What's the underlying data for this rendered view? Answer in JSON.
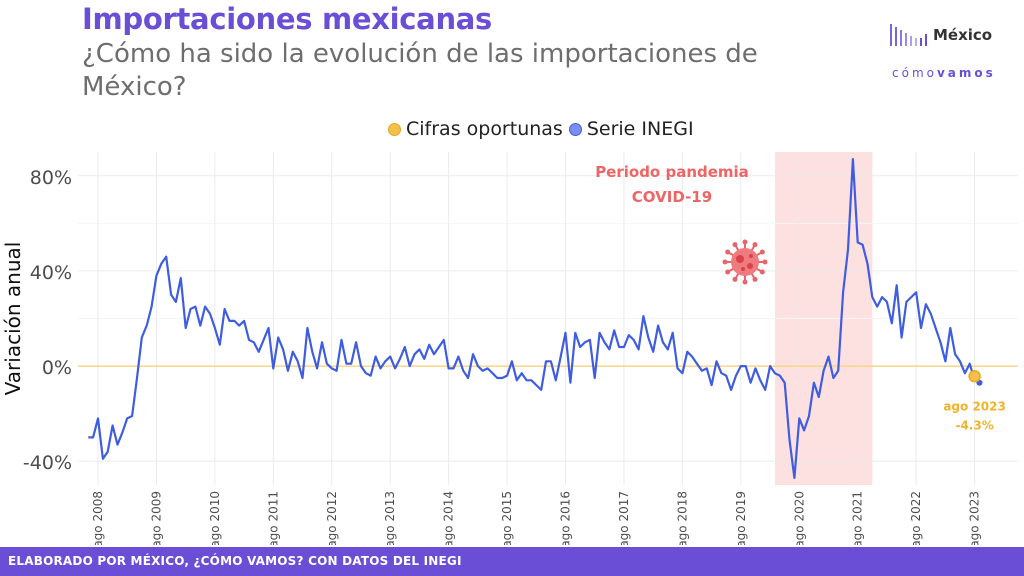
{
  "header": {
    "title": "Importaciones mexicanas",
    "subtitle": "¿Cómo ha sido la evolución de las importaciones de México?"
  },
  "logo": {
    "name": "México",
    "sub_a": "cómo",
    "sub_b": "vamos"
  },
  "footer": {
    "text": "ELABORADO POR MÉXICO, ¿CÓMO VAMOS? CON DATOS DEL INEGI"
  },
  "colors": {
    "accent": "#6a4fd6",
    "series": "#3f5de0",
    "oportunas": "#f3c14b",
    "pandemic_band": "#fde0e0",
    "pandemic_text": "#ef6464"
  },
  "chart_data": {
    "type": "line",
    "xlabel": "",
    "ylabel": "Variación anual",
    "ylim": [
      -50,
      90
    ],
    "yticks": [
      -40,
      0,
      40,
      80
    ],
    "ytick_labels": [
      "-40%",
      "0%",
      "40%",
      "80%"
    ],
    "xticks": [
      "ago 2008",
      "ago 2009",
      "ago 2010",
      "ago 2011",
      "ago 2012",
      "ago 2013",
      "ago 2014",
      "ago 2015",
      "ago 2016",
      "ago 2017",
      "ago 2018",
      "ago 2019",
      "ago 2020",
      "ago 2021",
      "ago 2022",
      "ago 2023"
    ],
    "xstart": "2008-06",
    "legend_position": "top",
    "grid": true,
    "series": [
      {
        "name": "Serie INEGI",
        "color": "#3f5de0",
        "values": [
          -30,
          -30,
          -22,
          -39,
          -36,
          -25,
          -33,
          -28,
          -22,
          -21,
          -5,
          12,
          17,
          25,
          38,
          43,
          46,
          30,
          27,
          37,
          16,
          24,
          25,
          17,
          25,
          22,
          16,
          9,
          24,
          19,
          19,
          17,
          19,
          11,
          10,
          6,
          11,
          16,
          -1,
          12,
          7,
          -2,
          6,
          2,
          -5,
          16,
          6,
          -1,
          10,
          1,
          -1,
          -2,
          11,
          1,
          1,
          10,
          0,
          -3,
          -4,
          4,
          -1,
          2,
          4,
          -1,
          3,
          8,
          0,
          5,
          7,
          3,
          9,
          5,
          8,
          11,
          -1,
          -1,
          4,
          -2,
          -5,
          5,
          0,
          -2,
          -1,
          -3,
          -5,
          -5,
          -4,
          2,
          -6,
          -3,
          -6,
          -6,
          -8,
          -10,
          2,
          2,
          -6,
          4,
          14,
          -7,
          14,
          8,
          10,
          11,
          -5,
          14,
          10,
          7,
          15,
          8,
          8,
          13,
          11,
          7,
          21,
          12,
          6,
          17,
          10,
          7,
          14,
          -1,
          -3,
          6,
          4,
          1,
          -2,
          -1,
          -8,
          2,
          -3,
          -4,
          -10,
          -4,
          0,
          0,
          -7,
          -1,
          -6,
          -10,
          0,
          -3,
          -4,
          -7,
          -31,
          -47,
          -22,
          -27,
          -21,
          -7,
          -13,
          -2,
          4,
          -5,
          -2,
          31,
          49,
          87,
          52,
          51,
          43,
          29,
          25,
          29,
          27,
          18,
          34,
          12,
          27,
          29,
          31,
          16,
          26,
          22,
          16,
          10,
          2,
          16,
          5,
          2,
          -3,
          1,
          -6,
          -7
        ],
        "last_label": ""
      },
      {
        "name": "Cifras oportunas",
        "color": "#f3c14b",
        "points": [
          {
            "x": "2023-08",
            "y": -4.3
          }
        ],
        "label_date": "ago 2023",
        "label_value": "-4.3%"
      }
    ],
    "bands": [
      {
        "from": "2020-03",
        "to": "2021-11",
        "label_1": "Periodo pandemia",
        "label_2": "COVID-19"
      }
    ]
  }
}
